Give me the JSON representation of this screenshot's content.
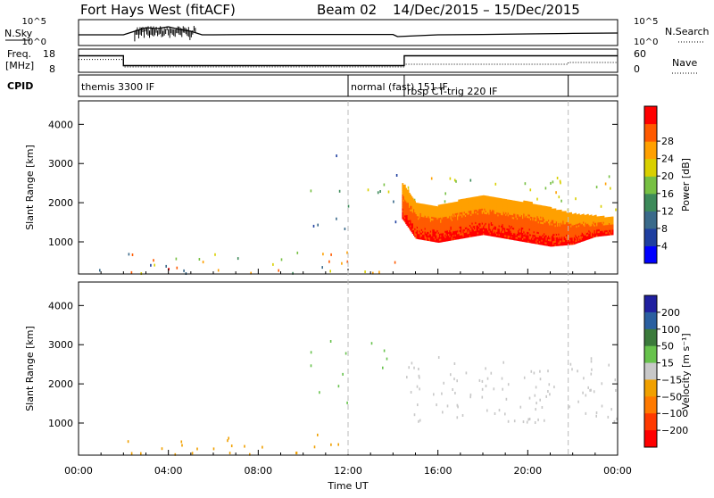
{
  "header": {
    "title": "Fort Hays West (fitACF)",
    "beam": "Beam 02",
    "date_range": "14/Dec/2015 – 15/Dec/2015"
  },
  "colors": {
    "scale": [
      "#0000ff",
      "#1f3fa0",
      "#3a6a8a",
      "#3d8a5a",
      "#77c043",
      "#d9d000",
      "#ffa000",
      "#ff5a00",
      "#ff0000"
    ],
    "velocity_scale": [
      "#2020a0",
      "#2a5fa0",
      "#3b7a3b",
      "#67c24c",
      "#c8c8c8",
      "#f0a000",
      "#ff7a00",
      "#ff3a00",
      "#ff0000"
    ]
  },
  "chart_data": [
    {
      "type": "line",
      "panel": "noise",
      "ylabel_left": "N.Sky",
      "ylabel_right": "N.Search",
      "y_ticks": [
        "10^5",
        "10^0"
      ],
      "y_ticks_right": [
        "10^5",
        "10^0"
      ],
      "series": [
        {
          "x": [
            0,
            2,
            2.5,
            3,
            3.5,
            4,
            4.5,
            5,
            5.5,
            6,
            8,
            10,
            12,
            14,
            14.2,
            16,
            18,
            20,
            22,
            24
          ],
          "y": [
            0.4,
            0.4,
            0.6,
            0.8,
            0.75,
            0.85,
            0.7,
            0.6,
            0.4,
            0.4,
            0.42,
            0.42,
            0.42,
            0.42,
            0.3,
            0.4,
            0.42,
            0.45,
            0.48,
            0.5
          ]
        }
      ]
    },
    {
      "type": "line",
      "panel": "frequency",
      "ylabel_left": "Freq.",
      "ylabel_left_unit": "[MHz]",
      "ylabel_right": "Nave",
      "y_ticks": [
        "18",
        "8"
      ],
      "y_ticks_right": [
        "60",
        "0"
      ],
      "series": [
        {
          "x": [
            0,
            2,
            2,
            14.5,
            14.5,
            24
          ],
          "y": [
            15.5,
            15.5,
            10.5,
            10.5,
            15.5,
            15.5
          ]
        },
        {
          "x": [
            0,
            2,
            2,
            14.5,
            14.5,
            21.8,
            21.8,
            24
          ],
          "y": [
            0.62,
            0.62,
            0.2,
            0.2,
            0.35,
            0.35,
            0.45,
            0.45
          ]
        }
      ]
    },
    {
      "type": "table",
      "panel": "cpid",
      "label": "CPID",
      "segments": [
        {
          "start": 0,
          "label": "themis 3300 IF"
        },
        {
          "start": 12,
          "label": "normal (fast) 151 IF"
        },
        {
          "start": 14.5,
          "label": "rbsp CT-trig 220 IF"
        },
        {
          "start": 21.8,
          "label": ""
        }
      ]
    },
    {
      "type": "heatmap",
      "panel": "power",
      "ylabel": "Slant Range [km]",
      "ylim": [
        180,
        4600
      ],
      "y_ticks": [
        1000,
        2000,
        3000,
        4000
      ],
      "xlim": [
        0,
        24
      ],
      "colorbar": {
        "label": "Power [dB]",
        "ticks": [
          "4",
          "8",
          "12",
          "16",
          "20",
          "24",
          "28"
        ],
        "range": [
          0,
          32
        ]
      },
      "scatter_regions": [
        {
          "x": [
            0,
            2
          ],
          "range": [
            180,
            350
          ],
          "value_range": [
            4,
            30
          ],
          "density": 0.15
        },
        {
          "x": [
            2,
            12
          ],
          "range": [
            180,
            750
          ],
          "value_range": [
            4,
            30
          ],
          "density": 0.5
        },
        {
          "x": [
            12,
            14.5
          ],
          "range": [
            180,
            500
          ],
          "value_range": [
            4,
            30
          ],
          "density": 0.5
        },
        {
          "x": [
            10.3,
            12
          ],
          "range": [
            1300,
            3300
          ],
          "value_range": [
            6,
            16
          ],
          "density": 0.2
        },
        {
          "x": [
            12.8,
            13.8
          ],
          "range": [
            2200,
            3100
          ],
          "value_range": [
            10,
            22
          ],
          "density": 0.5
        },
        {
          "x": [
            13.8,
            14.5
          ],
          "range": [
            1200,
            2700
          ],
          "value_range": [
            6,
            14
          ],
          "density": 0.3
        },
        {
          "x": [
            14.5,
            24
          ],
          "range": [
            1400,
            2700
          ],
          "value_range": [
            14,
            22
          ],
          "density": 0.35
        }
      ],
      "band": {
        "x": [
          14.4,
          23.8
        ],
        "value_range": [
          22,
          32
        ],
        "lower_km": [
          [
            14.4,
            1600
          ],
          [
            15,
            1100
          ],
          [
            16,
            1000
          ],
          [
            17,
            1100
          ],
          [
            18,
            1200
          ],
          [
            19,
            1100
          ],
          [
            20,
            1000
          ],
          [
            21,
            900
          ],
          [
            22,
            950
          ],
          [
            23,
            1150
          ],
          [
            23.8,
            1200
          ]
        ],
        "upper_km": [
          [
            14.4,
            2500
          ],
          [
            15,
            2000
          ],
          [
            16,
            1900
          ],
          [
            17,
            2050
          ],
          [
            18,
            2150
          ],
          [
            19,
            2050
          ],
          [
            20,
            2000
          ],
          [
            21,
            1850
          ],
          [
            22,
            1700
          ],
          [
            23,
            1650
          ],
          [
            23.8,
            1600
          ]
        ]
      }
    },
    {
      "type": "heatmap",
      "panel": "velocity",
      "ylabel": "Slant Range [km]",
      "ylim": [
        180,
        4600
      ],
      "y_ticks": [
        1000,
        2000,
        3000,
        4000
      ],
      "xlim": [
        0,
        24
      ],
      "x_ticks": [
        "00:00",
        "04:00",
        "08:00",
        "12:00",
        "16:00",
        "20:00",
        "00:00"
      ],
      "xlabel": "Time UT",
      "colorbar": {
        "label": "Velocity [m s⁻¹]",
        "ticks": [
          "200",
          "100",
          "50",
          "15",
          "−15",
          "−50",
          "−100",
          "−200"
        ]
      },
      "scatter_regions": [
        {
          "x": [
            2,
            12
          ],
          "range": [
            180,
            700
          ],
          "value_range": [
            5,
            6
          ],
          "density": 0.4
        },
        {
          "x": [
            10.3,
            12
          ],
          "range": [
            1300,
            3300
          ],
          "value_range": [
            3,
            4
          ],
          "density": 0.2
        },
        {
          "x": [
            12.8,
            13.8
          ],
          "range": [
            2200,
            3100
          ],
          "value_range": [
            3,
            4
          ],
          "density": 0.4
        },
        {
          "x": [
            14.5,
            24
          ],
          "range": [
            1000,
            2700
          ],
          "value_range": [
            4,
            4
          ],
          "density": 0.6
        }
      ]
    }
  ]
}
